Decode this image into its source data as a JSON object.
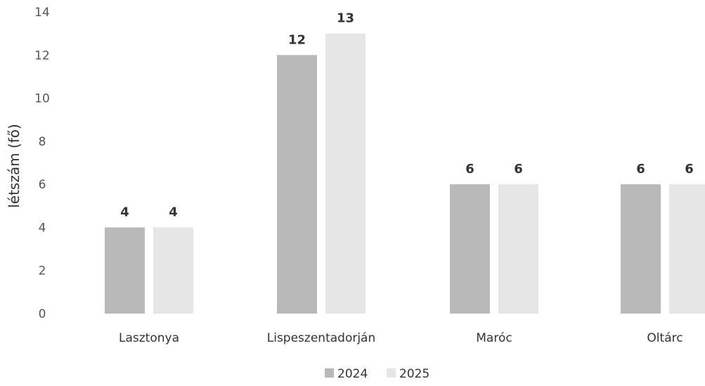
{
  "chart_data": {
    "type": "bar",
    "title": "",
    "xlabel": "",
    "ylabel": "létszám (fő)",
    "ylim": [
      0,
      14
    ],
    "yticks": [
      0,
      2,
      4,
      6,
      8,
      10,
      12,
      14
    ],
    "grid": false,
    "legend_position": "bottom",
    "categories": [
      "Lasztonya",
      "Lispeszentadorján",
      "Maróc",
      "Oltárc"
    ],
    "series": [
      {
        "name": "2024",
        "values": [
          4,
          12,
          6,
          6
        ],
        "color": "#b9b9b9"
      },
      {
        "name": "2025",
        "values": [
          4,
          13,
          6,
          6
        ],
        "color": "#e6e6e6"
      }
    ]
  }
}
